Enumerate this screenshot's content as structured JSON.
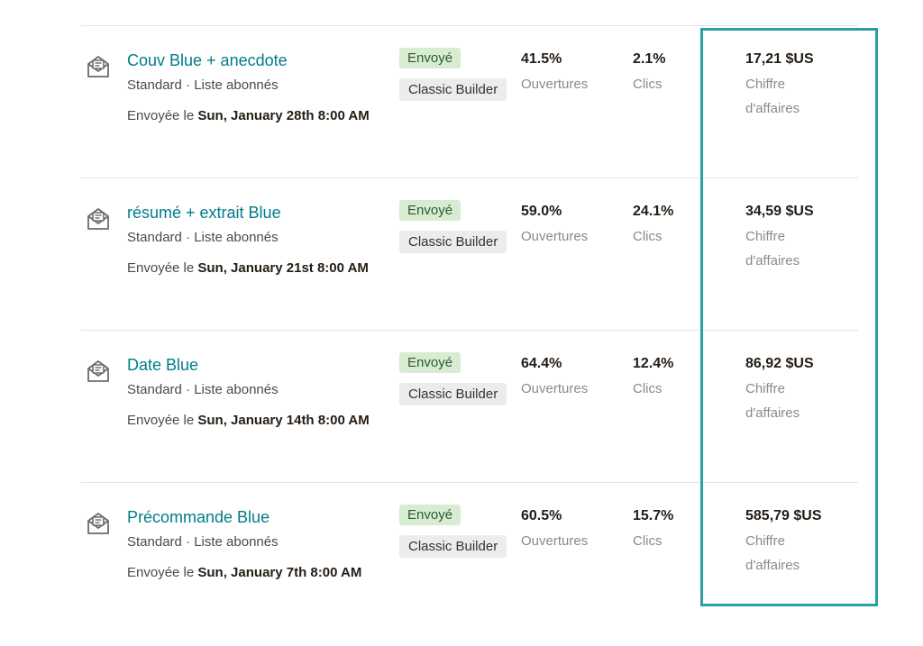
{
  "campaigns": [
    {
      "title": "Couv Blue + anecdote",
      "subtitle": "Standard · Liste abonnés",
      "sent_prefix": "Envoyée le ",
      "sent_date": "Sun, January 28th 8:00 AM",
      "status": "Envoyé",
      "builder": "Classic Builder",
      "opens": "41.5%",
      "opens_label": "Ouvertures",
      "clicks": "2.1%",
      "clicks_label": "Clics",
      "revenue": "17,21 $US",
      "revenue_label_line1": "Chiffre",
      "revenue_label_line2": "d'affaires"
    },
    {
      "title": "résumé + extrait Blue",
      "subtitle": "Standard · Liste abonnés",
      "sent_prefix": "Envoyée le ",
      "sent_date": "Sun, January 21st 8:00 AM",
      "status": "Envoyé",
      "builder": "Classic Builder",
      "opens": "59.0%",
      "opens_label": "Ouvertures",
      "clicks": "24.1%",
      "clicks_label": "Clics",
      "revenue": "34,59 $US",
      "revenue_label_line1": "Chiffre",
      "revenue_label_line2": "d'affaires"
    },
    {
      "title": "Date Blue",
      "subtitle": "Standard · Liste abonnés",
      "sent_prefix": "Envoyée le ",
      "sent_date": "Sun, January 14th 8:00 AM",
      "status": "Envoyé",
      "builder": "Classic Builder",
      "opens": "64.4%",
      "opens_label": "Ouvertures",
      "clicks": "12.4%",
      "clicks_label": "Clics",
      "revenue": "86,92 $US",
      "revenue_label_line1": "Chiffre",
      "revenue_label_line2": "d'affaires"
    },
    {
      "title": "Précommande Blue",
      "subtitle": "Standard · Liste abonnés",
      "sent_prefix": "Envoyée le ",
      "sent_date": "Sun, January 7th 8:00 AM",
      "status": "Envoyé",
      "builder": "Classic Builder",
      "opens": "60.5%",
      "opens_label": "Ouvertures",
      "clicks": "15.7%",
      "clicks_label": "Clics",
      "revenue": "585,79 $US",
      "revenue_label_line1": "Chiffre",
      "revenue_label_line2": "d'affaires"
    }
  ],
  "colors": {
    "link": "#007c89",
    "status_bg": "#d7ecd2",
    "builder_bg": "#ececec",
    "highlight_border": "#2a9fa6"
  },
  "icons": {
    "campaign": "email-campaign-icon"
  }
}
